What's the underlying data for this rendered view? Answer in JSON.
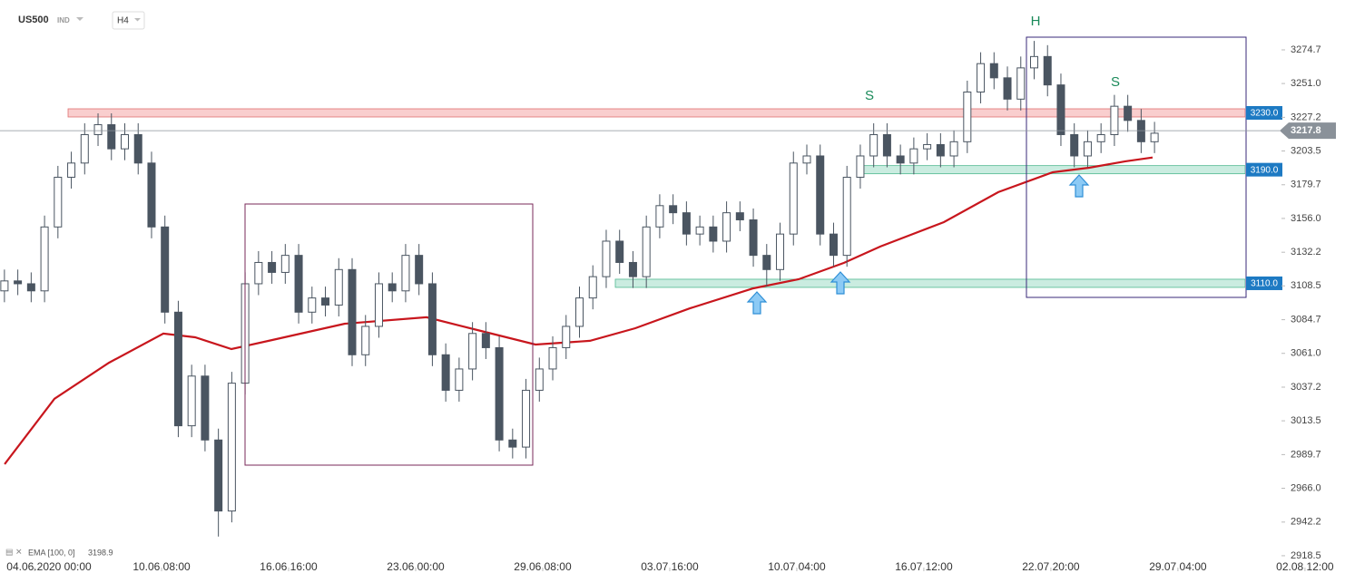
{
  "chart_data": {
    "type": "candlestick",
    "header": {
      "symbol": "US500",
      "market": "IND",
      "timeframe": "H4"
    },
    "xlim": [
      -41.3,
      1567.9
    ],
    "xticks": [
      {
        "value": 0,
        "label": "04.06.2020 00:00"
      },
      {
        "value": 152,
        "label": "10.06 08:00"
      },
      {
        "value": 304,
        "label": "16.06 16:00"
      },
      {
        "value": 456,
        "label": "23.06 00:00"
      },
      {
        "value": 608,
        "label": "29.06 08:00"
      },
      {
        "value": 760,
        "label": "03.07 16:00"
      },
      {
        "value": 912,
        "label": "10.07 04:00"
      },
      {
        "value": 1064,
        "label": "16.07 12:00"
      },
      {
        "value": 1216,
        "label": "22.07 20:00"
      },
      {
        "value": 1368,
        "label": "29.07 04:00"
      },
      {
        "value": 1520,
        "label": "02.08 12:00"
      }
    ],
    "ylim": [
      2907.6,
      3309.8
    ],
    "yticks": [
      3274.7,
      {
        "value": 3251,
        "label": "3251.0"
      },
      3227.2,
      3203.5,
      3179.7,
      {
        "value": 3156,
        "label": "3156.0"
      },
      3132.2,
      3108.5,
      3084.7,
      {
        "value": 3061,
        "label": "3061.0"
      },
      3037.2,
      3013.5,
      2989.7,
      {
        "value": 2966,
        "label": "2966.0"
      },
      2942.2,
      2918.5
    ],
    "up_color": "#ffffff",
    "down_color": "#4a5561",
    "x": [
      -36,
      -20,
      -4,
      12,
      28,
      44,
      60,
      76,
      92,
      108,
      124,
      140,
      156,
      172,
      188,
      204,
      220,
      236,
      252,
      268,
      284,
      300,
      316,
      332,
      348,
      364,
      380,
      396,
      412,
      428,
      444,
      460,
      476,
      492,
      508,
      524,
      540,
      556,
      572,
      588,
      604,
      620,
      636,
      652,
      668,
      684,
      700,
      716,
      732,
      748,
      764,
      780,
      796,
      812,
      828,
      844,
      860,
      876,
      892,
      908,
      924,
      940,
      956,
      972,
      988,
      1004,
      1020,
      1036,
      1052,
      1068,
      1084,
      1100,
      1116,
      1132,
      1148,
      1164,
      1180,
      1196,
      1212,
      1228,
      1244,
      1260,
      1276,
      1292,
      1308,
      1324,
      1340
    ],
    "open": [
      3105,
      3112,
      3110,
      3105,
      3150,
      3185,
      3195,
      3215,
      3222,
      3205,
      3215,
      3195,
      3150,
      3090,
      3010,
      3045,
      3000,
      2950,
      3040,
      3110,
      3125,
      3118,
      3130,
      3090,
      3100,
      3095,
      3120,
      3060,
      3080,
      3110,
      3105,
      3130,
      3110,
      3060,
      3035,
      3050,
      3075,
      3065,
      3000,
      2995,
      3035,
      3050,
      3065,
      3080,
      3100,
      3115,
      3140,
      3125,
      3115,
      3150,
      3165,
      3160,
      3145,
      3150,
      3140,
      3160,
      3155,
      3130,
      3120,
      3145,
      3195,
      3200,
      3145,
      3130,
      3185,
      3200,
      3215,
      3200,
      3195,
      3205,
      3208,
      3200,
      3210,
      3245,
      3265,
      3255,
      3240,
      3262,
      3270,
      3250,
      3215,
      3200,
      3210,
      3215,
      3235,
      3225,
      3210
    ],
    "high": [
      3120,
      3120,
      3118,
      3158,
      3193,
      3203,
      3223,
      3230,
      3230,
      3223,
      3223,
      3203,
      3158,
      3098,
      3053,
      3053,
      3008,
      3048,
      3118,
      3133,
      3133,
      3138,
      3138,
      3108,
      3108,
      3128,
      3128,
      3088,
      3118,
      3118,
      3138,
      3138,
      3118,
      3068,
      3058,
      3083,
      3083,
      3073,
      3008,
      3043,
      3058,
      3073,
      3088,
      3108,
      3123,
      3148,
      3148,
      3133,
      3158,
      3173,
      3173,
      3168,
      3158,
      3158,
      3168,
      3168,
      3163,
      3138,
      3153,
      3203,
      3208,
      3208,
      3153,
      3193,
      3208,
      3223,
      3223,
      3208,
      3213,
      3216,
      3216,
      3218,
      3253,
      3273,
      3273,
      3263,
      3270,
      3281,
      3278,
      3258,
      3223,
      3218,
      3223,
      3243,
      3243,
      3233,
      3224
    ],
    "low": [
      3097,
      3102,
      3097,
      3097,
      3142,
      3177,
      3187,
      3207,
      3197,
      3197,
      3187,
      3142,
      3082,
      3002,
      3002,
      2992,
      2932,
      2942,
      3032,
      3102,
      3110,
      3110,
      3082,
      3082,
      3087,
      3087,
      3052,
      3052,
      3072,
      3097,
      3097,
      3102,
      3052,
      3027,
      3027,
      3042,
      3057,
      2992,
      2987,
      2987,
      3027,
      3042,
      3057,
      3072,
      3092,
      3107,
      3117,
      3107,
      3107,
      3142,
      3152,
      3137,
      3137,
      3132,
      3132,
      3147,
      3122,
      3108,
      3112,
      3137,
      3187,
      3137,
      3122,
      3122,
      3177,
      3192,
      3192,
      3187,
      3187,
      3197,
      3192,
      3192,
      3202,
      3237,
      3247,
      3232,
      3232,
      3254,
      3242,
      3207,
      3192,
      3192,
      3202,
      3207,
      3217,
      3202,
      3202
    ],
    "close": [
      3112,
      3110,
      3105,
      3150,
      3185,
      3195,
      3215,
      3222,
      3205,
      3215,
      3195,
      3150,
      3090,
      3010,
      3045,
      3000,
      2950,
      3040,
      3110,
      3125,
      3118,
      3130,
      3090,
      3100,
      3095,
      3120,
      3060,
      3080,
      3110,
      3105,
      3130,
      3110,
      3060,
      3035,
      3050,
      3075,
      3065,
      3000,
      2995,
      3035,
      3050,
      3065,
      3080,
      3100,
      3115,
      3140,
      3125,
      3115,
      3150,
      3165,
      3160,
      3145,
      3150,
      3140,
      3160,
      3155,
      3130,
      3120,
      3145,
      3195,
      3200,
      3145,
      3130,
      3185,
      3200,
      3215,
      3200,
      3195,
      3205,
      3208,
      3200,
      3210,
      3245,
      3265,
      3255,
      3240,
      3262,
      3270,
      3250,
      3215,
      3200,
      3210,
      3215,
      3235,
      3225,
      3210,
      3216
    ],
    "ema": {
      "name": "EMA [100, 0]",
      "color": "#c8161d",
      "x": [
        -35.8,
        23.9,
        89,
        154.2,
        192.2,
        235.6,
        284.5,
        371.3,
        469,
        534.2,
        599.3,
        664.5,
        718.8,
        784,
        860,
        914.2,
        968.5,
        1012,
        1088,
        1153.1,
        1218.2,
        1261.7,
        1305.1,
        1337.7
      ],
      "values": [
        2983,
        3029,
        3054.4,
        3074.9,
        3072.3,
        3064,
        3070.4,
        3081.9,
        3086.4,
        3076.8,
        3067.2,
        3069.8,
        3078.7,
        3092.7,
        3106.8,
        3113.2,
        3124.7,
        3136.2,
        3153.4,
        3174.5,
        3188.5,
        3191.7,
        3196.2,
        3198.9
      ]
    },
    "levels": [
      {
        "value": 3230,
        "label": "3230.0",
        "color": "#f4a6a6"
      },
      {
        "value": 3190,
        "label": "3190.0",
        "color": "#9fdcc6"
      },
      {
        "value": 3110,
        "label": "3110.0",
        "color": "#9fdcc6"
      }
    ],
    "current_price": 3217.8,
    "annotations": [
      "S",
      "H",
      "S"
    ]
  }
}
